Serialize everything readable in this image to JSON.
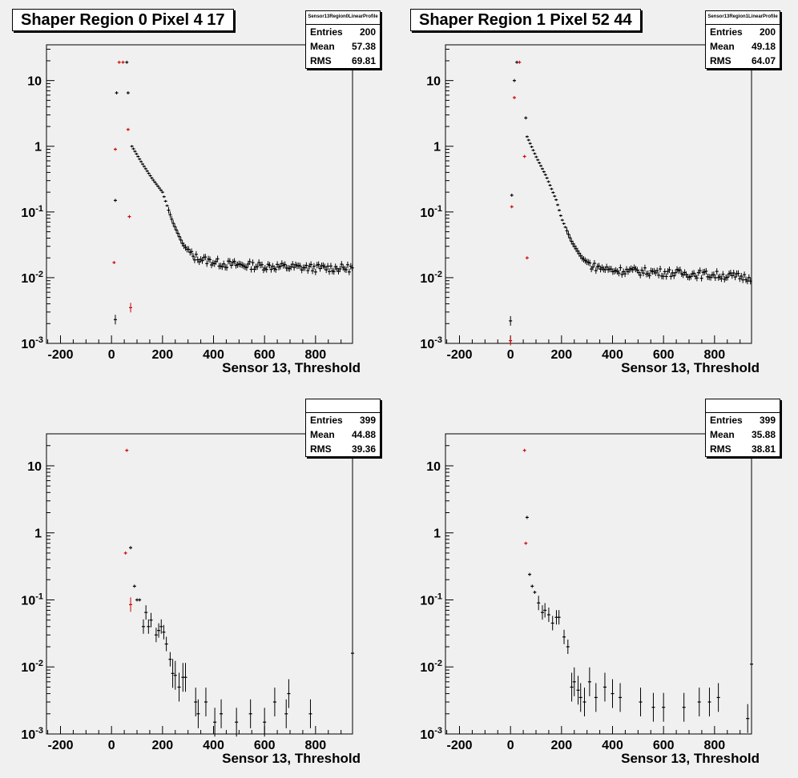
{
  "panels": [
    {
      "title": "Shaper Region 0 Pixel 4 17",
      "stats": {
        "name": "Sensor13Region0LinearProfile",
        "entries_label": "Entries",
        "entries": "200",
        "mean_label": "Mean",
        "mean": "57.38",
        "rms_label": "RMS",
        "rms": "69.81"
      }
    },
    {
      "title": "Shaper Region 1 Pixel 52 44",
      "stats": {
        "name": "Sensor13Region1LinearProfile",
        "entries_label": "Entries",
        "entries": "200",
        "mean_label": "Mean",
        "mean": "49.18",
        "rms_label": "RMS",
        "rms": "64.07"
      }
    },
    {
      "title": "",
      "stats": {
        "name": "",
        "entries_label": "Entries",
        "entries": "399",
        "mean_label": "Mean",
        "mean": "44.88",
        "rms_label": "RMS",
        "rms": "39.36"
      }
    },
    {
      "title": "",
      "stats": {
        "name": "",
        "entries_label": "Entries",
        "entries": "399",
        "mean_label": "Mean",
        "mean": "35.88",
        "rms_label": "RMS",
        "rms": "38.81"
      }
    }
  ],
  "colors": {
    "black_series": "#000000",
    "red_series": "#cc0000",
    "frame": "#000000"
  },
  "chart_data": [
    {
      "type": "scatter",
      "title": "Shaper Region 0 Pixel 4 17",
      "xlabel": "Sensor 13, Threshold",
      "ylabel": "",
      "xlim": [
        -255,
        945
      ],
      "ylim": [
        0.001,
        35
      ],
      "yscale": "log",
      "x_ticks": [
        -200,
        0,
        200,
        400,
        600,
        800
      ],
      "y_ticks": [
        0.001,
        0.01,
        0.1,
        1,
        10
      ],
      "y_tick_labels": [
        "10^-3",
        "10^-2",
        "10^-1",
        "1",
        "10"
      ],
      "series": [
        {
          "color": "black",
          "curve": [
            [
              80,
              1.0
            ],
            [
              120,
              0.55
            ],
            [
              160,
              0.32
            ],
            [
              200,
              0.2
            ],
            [
              240,
              0.07
            ],
            [
              280,
              0.032
            ],
            [
              320,
              0.021
            ],
            [
              380,
              0.018
            ],
            [
              450,
              0.016
            ],
            [
              600,
              0.015
            ],
            [
              800,
              0.014
            ],
            [
              945,
              0.014
            ]
          ],
          "points": [
            [
              15,
              0.0023
            ],
            [
              15,
              0.15
            ],
            [
              20,
              6.5
            ],
            [
              65,
              6.5
            ],
            [
              60,
              19
            ]
          ]
        },
        {
          "color": "red",
          "points": [
            [
              10,
              0.017
            ],
            [
              15,
              0.9
            ],
            [
              30,
              19
            ],
            [
              45,
              19
            ],
            [
              65,
              1.8
            ],
            [
              70,
              0.085
            ],
            [
              75,
              0.0035
            ]
          ]
        }
      ]
    },
    {
      "type": "scatter",
      "title": "Shaper Region 1 Pixel 52 44",
      "xlabel": "Sensor 13, Threshold",
      "ylabel": "",
      "xlim": [
        -255,
        945
      ],
      "ylim": [
        0.001,
        35
      ],
      "yscale": "log",
      "x_ticks": [
        -200,
        0,
        200,
        400,
        600,
        800
      ],
      "y_ticks": [
        0.001,
        0.01,
        0.1,
        1,
        10
      ],
      "y_tick_labels": [
        "10^-3",
        "10^-2",
        "10^-1",
        "1",
        "10"
      ],
      "series": [
        {
          "color": "black",
          "curve": [
            [
              65,
              1.4
            ],
            [
              100,
              0.7
            ],
            [
              140,
              0.35
            ],
            [
              180,
              0.15
            ],
            [
              200,
              0.08
            ],
            [
              240,
              0.035
            ],
            [
              280,
              0.02
            ],
            [
              320,
              0.015
            ],
            [
              400,
              0.013
            ],
            [
              600,
              0.012
            ],
            [
              800,
              0.011
            ],
            [
              945,
              0.01
            ]
          ],
          "points": [
            [
              0,
              0.0022
            ],
            [
              5,
              0.18
            ],
            [
              15,
              10
            ],
            [
              25,
              19
            ],
            [
              60,
              2.7
            ]
          ]
        },
        {
          "color": "red",
          "points": [
            [
              0,
              0.0011
            ],
            [
              5,
              0.12
            ],
            [
              15,
              5.5
            ],
            [
              35,
              19
            ],
            [
              55,
              0.7
            ],
            [
              65,
              0.02
            ]
          ]
        }
      ]
    },
    {
      "type": "scatter",
      "title": "",
      "xlabel": "Sensor 13, Threshold",
      "ylabel": "",
      "xlim": [
        -255,
        945
      ],
      "ylim": [
        0.001,
        30
      ],
      "yscale": "log",
      "x_ticks": [
        -200,
        0,
        200,
        400,
        600,
        800
      ],
      "y_ticks": [
        0.001,
        0.01,
        0.1,
        1,
        10
      ],
      "y_tick_labels": [
        "10^-3",
        "10^-2",
        "10^-1",
        "1",
        "10"
      ],
      "series": [
        {
          "color": "black",
          "points": [
            [
              75,
              0.6
            ],
            [
              90,
              0.16
            ],
            [
              100,
              0.1
            ],
            [
              110,
              0.1
            ],
            [
              125,
              0.04
            ],
            [
              135,
              0.065
            ],
            [
              145,
              0.04
            ],
            [
              155,
              0.05
            ],
            [
              175,
              0.03
            ],
            [
              185,
              0.035
            ],
            [
              195,
              0.04
            ],
            [
              205,
              0.033
            ],
            [
              215,
              0.022
            ],
            [
              230,
              0.013
            ],
            [
              240,
              0.008
            ],
            [
              250,
              0.0075
            ],
            [
              265,
              0.005
            ],
            [
              280,
              0.007
            ],
            [
              290,
              0.007
            ],
            [
              330,
              0.003
            ],
            [
              340,
              0.002
            ],
            [
              370,
              0.003
            ],
            [
              405,
              0.0015
            ],
            [
              430,
              0.002
            ],
            [
              490,
              0.0015
            ],
            [
              545,
              0.002
            ],
            [
              600,
              0.0015
            ],
            [
              640,
              0.003
            ],
            [
              685,
              0.002
            ],
            [
              695,
              0.004
            ],
            [
              780,
              0.002
            ],
            [
              945,
              0.016
            ]
          ]
        },
        {
          "color": "red",
          "points": [
            [
              60,
              17
            ],
            [
              55,
              0.5
            ],
            [
              75,
              0.085
            ]
          ]
        }
      ]
    },
    {
      "type": "scatter",
      "title": "",
      "xlabel": "Sensor 13, Threshold",
      "ylabel": "",
      "xlim": [
        -255,
        945
      ],
      "ylim": [
        0.001,
        30
      ],
      "yscale": "log",
      "x_ticks": [
        -200,
        0,
        200,
        400,
        600,
        800
      ],
      "y_ticks": [
        0.001,
        0.01,
        0.1,
        1,
        10
      ],
      "y_tick_labels": [
        "10^-3",
        "10^-2",
        "10^-1",
        "1",
        "10"
      ],
      "series": [
        {
          "color": "black",
          "points": [
            [
              65,
              1.7
            ],
            [
              75,
              0.24
            ],
            [
              85,
              0.16
            ],
            [
              95,
              0.13
            ],
            [
              110,
              0.09
            ],
            [
              125,
              0.065
            ],
            [
              135,
              0.07
            ],
            [
              150,
              0.06
            ],
            [
              165,
              0.045
            ],
            [
              180,
              0.055
            ],
            [
              190,
              0.055
            ],
            [
              210,
              0.028
            ],
            [
              225,
              0.02
            ],
            [
              240,
              0.005
            ],
            [
              250,
              0.006
            ],
            [
              265,
              0.0045
            ],
            [
              275,
              0.0035
            ],
            [
              290,
              0.003
            ],
            [
              310,
              0.006
            ],
            [
              335,
              0.0035
            ],
            [
              370,
              0.005
            ],
            [
              400,
              0.004
            ],
            [
              430,
              0.0035
            ],
            [
              510,
              0.003
            ],
            [
              560,
              0.0025
            ],
            [
              600,
              0.0025
            ],
            [
              680,
              0.0025
            ],
            [
              740,
              0.003
            ],
            [
              780,
              0.003
            ],
            [
              815,
              0.0035
            ],
            [
              930,
              0.0017
            ],
            [
              945,
              0.011
            ]
          ]
        },
        {
          "color": "red",
          "points": [
            [
              55,
              17
            ],
            [
              60,
              0.7
            ]
          ]
        }
      ]
    }
  ]
}
